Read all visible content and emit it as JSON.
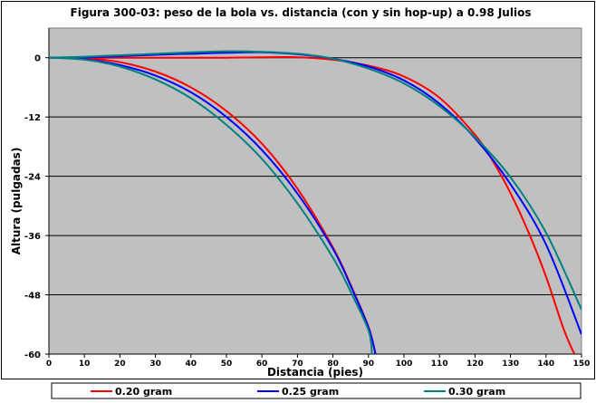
{
  "chart_data": {
    "type": "line",
    "title": "Figura 300-03: peso de la bola vs. distancia (con y sin hop-up) a 0.98 Julios",
    "xlabel": "Distancia (pies)",
    "ylabel": "Altura (pulgadas)",
    "xlim": [
      0,
      150
    ],
    "ylim": [
      -60,
      6
    ],
    "x_ticks": [
      "0",
      "10",
      "20",
      "30",
      "40",
      "50",
      "60",
      "70",
      "80",
      "90",
      "100",
      "110",
      "120",
      "130",
      "140",
      "150"
    ],
    "y_ticks": [
      "0",
      "-12",
      "-24",
      "-36",
      "-48",
      "-60"
    ],
    "grid": "horizontal",
    "plot_background": "#c0c0c0",
    "legend_position": "bottom",
    "series": [
      {
        "name": "0.20 gram",
        "color": "#ff0000",
        "curves": [
          {
            "x": [
              0,
              10,
              20,
              30,
              40,
              50,
              60,
              70,
              80,
              85,
              90,
              92
            ],
            "y": [
              0,
              -0.1,
              -0.9,
              -2.8,
              -6.0,
              -10.8,
              -17.4,
              -26.5,
              -38.4,
              -46,
              -54.5,
              -60
            ]
          },
          {
            "x": [
              0,
              10,
              20,
              30,
              40,
              50,
              60,
              70,
              80,
              90,
              100,
              110,
              120,
              125,
              130,
              135,
              140,
              145,
              148
            ],
            "y": [
              0,
              0,
              0,
              0,
              0,
              0,
              0.1,
              0.1,
              -0.4,
              -1.6,
              -3.8,
              -8.1,
              -15.6,
              -20.9,
              -27.4,
              -35.2,
              -44.3,
              -55,
              -60
            ]
          }
        ]
      },
      {
        "name": "0.25 gram",
        "color": "#0000ff",
        "curves": [
          {
            "x": [
              0,
              10,
              20,
              30,
              40,
              50,
              60,
              70,
              80,
              85,
              90,
              92
            ],
            "y": [
              0,
              -0.3,
              -1.5,
              -3.6,
              -7.0,
              -12.0,
              -18.7,
              -27.5,
              -38.7,
              -46.2,
              -54.6,
              -60
            ]
          },
          {
            "x": [
              0,
              10,
              20,
              30,
              40,
              50,
              60,
              70,
              80,
              90,
              100,
              110,
              120,
              130,
              140,
              150
            ],
            "y": [
              0,
              0.1,
              0.3,
              0.6,
              0.8,
              1.0,
              1.1,
              0.7,
              -0.2,
              -1.8,
              -4.6,
              -9.3,
              -16.3,
              -25.6,
              -37.8,
              -56
            ]
          }
        ]
      },
      {
        "name": "0.30 gram",
        "color": "#008080",
        "curves": [
          {
            "x": [
              0,
              10,
              20,
              30,
              40,
              50,
              60,
              70,
              80,
              85,
              90,
              91
            ],
            "y": [
              0,
              -0.4,
              -1.8,
              -4.4,
              -8.2,
              -13.6,
              -20.5,
              -29.5,
              -40.5,
              -47.4,
              -55.2,
              -60
            ]
          },
          {
            "x": [
              0,
              10,
              20,
              30,
              40,
              50,
              60,
              70,
              80,
              90,
              100,
              110,
              120,
              130,
              140,
              150
            ],
            "y": [
              0,
              0.2,
              0.5,
              0.8,
              1.1,
              1.3,
              1.2,
              0.8,
              -0.2,
              -2.2,
              -5.2,
              -9.8,
              -16.1,
              -24.2,
              -35.4,
              -51
            ]
          }
        ]
      }
    ]
  }
}
